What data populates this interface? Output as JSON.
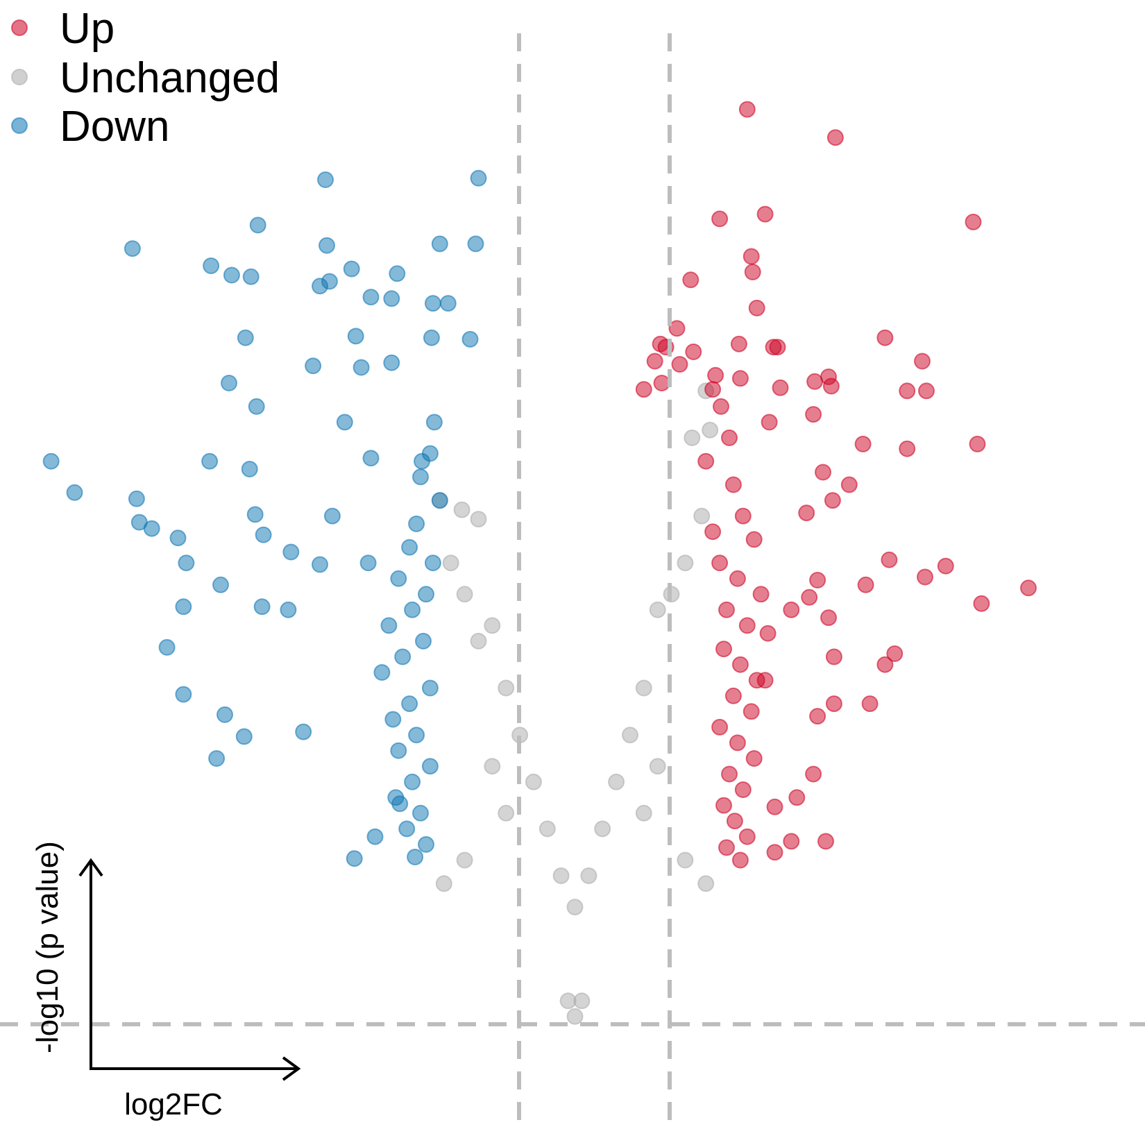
{
  "chart_data": {
    "type": "scatter",
    "title": "",
    "xlabel": "log2FC",
    "ylabel": "-log10 (p value)",
    "thresholds": {
      "log2fc": [
        -1,
        1
      ],
      "neg_log10_p": 1.3
    },
    "xlim": [
      -4,
      4
    ],
    "ylim": [
      0,
      6.5
    ],
    "grid": false,
    "legend_position": "top-left",
    "legend": [
      {
        "name": "Up",
        "color": "#CC0022"
      },
      {
        "name": "Unchanged",
        "color": "#AAAAAA"
      },
      {
        "name": "Down",
        "color": "#0B74B2"
      }
    ],
    "series": [
      {
        "name": "Up",
        "color": "#CC0022",
        "points": [
          [
            1.25,
            6.2
          ],
          [
            1.89,
            6.02
          ],
          [
            1.05,
            5.5
          ],
          [
            1.38,
            5.53
          ],
          [
            2.89,
            5.48
          ],
          [
            1.28,
            5.26
          ],
          [
            1.29,
            5.16
          ],
          [
            0.84,
            5.11
          ],
          [
            1.32,
            4.93
          ],
          [
            0.74,
            4.8
          ],
          [
            2.25,
            4.74
          ],
          [
            1.19,
            4.7
          ],
          [
            0.62,
            4.7
          ],
          [
            0.66,
            4.68
          ],
          [
            1.44,
            4.68
          ],
          [
            1.47,
            4.68
          ],
          [
            0.86,
            4.65
          ],
          [
            0.58,
            4.59
          ],
          [
            0.76,
            4.57
          ],
          [
            2.52,
            4.59
          ],
          [
            1.84,
            4.49
          ],
          [
            1.2,
            4.48
          ],
          [
            0.63,
            4.45
          ],
          [
            1.49,
            4.42
          ],
          [
            1.74,
            4.46
          ],
          [
            1.86,
            4.43
          ],
          [
            0.5,
            4.41
          ],
          [
            1.0,
            4.41
          ],
          [
            2.41,
            4.4
          ],
          [
            2.55,
            4.4
          ],
          [
            1.73,
            4.25
          ],
          [
            1.41,
            4.2
          ],
          [
            2.09,
            4.06
          ],
          [
            2.92,
            4.06
          ],
          [
            2.41,
            4.03
          ],
          [
            1.8,
            3.88
          ],
          [
            1.99,
            3.8
          ],
          [
            1.87,
            3.7
          ],
          [
            1.68,
            3.62
          ],
          [
            2.28,
            3.32
          ],
          [
            2.69,
            3.28
          ],
          [
            3.29,
            3.14
          ],
          [
            2.54,
            3.21
          ],
          [
            1.76,
            3.19
          ],
          [
            2.11,
            3.16
          ],
          [
            2.95,
            3.04
          ],
          [
            1.7,
            3.08
          ],
          [
            1.57,
            3.0
          ],
          [
            1.84,
            2.95
          ],
          [
            1.88,
            2.7
          ],
          [
            2.32,
            2.72
          ],
          [
            2.25,
            2.65
          ],
          [
            1.38,
            2.55
          ],
          [
            1.76,
            2.32
          ],
          [
            2.14,
            2.4
          ],
          [
            1.88,
            2.4
          ],
          [
            1.73,
            1.95
          ],
          [
            1.61,
            1.8
          ],
          [
            1.45,
            1.74
          ],
          [
            1.57,
            1.52
          ],
          [
            1.82,
            1.52
          ],
          [
            1.45,
            1.45
          ],
          [
            1.02,
            4.5
          ],
          [
            1.06,
            4.3
          ],
          [
            1.12,
            4.1
          ],
          [
            0.95,
            3.95
          ],
          [
            1.15,
            3.8
          ],
          [
            1.22,
            3.6
          ],
          [
            1.0,
            3.5
          ],
          [
            1.3,
            3.45
          ],
          [
            1.05,
            3.3
          ],
          [
            1.18,
            3.2
          ],
          [
            1.35,
            3.1
          ],
          [
            1.1,
            3.0
          ],
          [
            1.25,
            2.9
          ],
          [
            1.4,
            2.85
          ],
          [
            1.08,
            2.75
          ],
          [
            1.2,
            2.65
          ],
          [
            1.32,
            2.55
          ],
          [
            1.15,
            2.45
          ],
          [
            1.28,
            2.35
          ],
          [
            1.05,
            2.25
          ],
          [
            1.18,
            2.15
          ],
          [
            1.3,
            2.05
          ],
          [
            1.12,
            1.95
          ],
          [
            1.22,
            1.85
          ],
          [
            1.08,
            1.75
          ],
          [
            1.16,
            1.65
          ],
          [
            1.25,
            1.55
          ],
          [
            1.1,
            1.48
          ],
          [
            1.2,
            1.4
          ]
        ]
      },
      {
        "name": "Down",
        "color": "#0B74B2",
        "points": [
          [
            -1.81,
            5.75
          ],
          [
            -0.7,
            5.76
          ],
          [
            -2.3,
            5.46
          ],
          [
            -3.21,
            5.31
          ],
          [
            -1.8,
            5.33
          ],
          [
            -0.98,
            5.34
          ],
          [
            -0.72,
            5.34
          ],
          [
            -2.64,
            5.2
          ],
          [
            -2.49,
            5.14
          ],
          [
            -2.35,
            5.13
          ],
          [
            -1.62,
            5.18
          ],
          [
            -1.29,
            5.15
          ],
          [
            -1.78,
            5.1
          ],
          [
            -1.85,
            5.07
          ],
          [
            -1.48,
            5.0
          ],
          [
            -1.33,
            4.99
          ],
          [
            -1.03,
            4.96
          ],
          [
            -0.92,
            4.96
          ],
          [
            -2.39,
            4.74
          ],
          [
            -1.59,
            4.75
          ],
          [
            -1.04,
            4.74
          ],
          [
            -0.76,
            4.73
          ],
          [
            -2.51,
            4.45
          ],
          [
            -1.55,
            4.55
          ],
          [
            -1.33,
            4.58
          ],
          [
            -1.9,
            4.56
          ],
          [
            -2.31,
            4.3
          ],
          [
            -1.67,
            4.2
          ],
          [
            -3.8,
            3.95
          ],
          [
            -3.63,
            3.75
          ],
          [
            -3.18,
            3.71
          ],
          [
            -2.65,
            3.95
          ],
          [
            -2.36,
            3.9
          ],
          [
            -1.48,
            3.97
          ],
          [
            -1.11,
            3.95
          ],
          [
            -3.16,
            3.56
          ],
          [
            -2.82,
            3.3
          ],
          [
            -2.26,
            3.48
          ],
          [
            -2.32,
            3.61
          ],
          [
            -1.76,
            3.6
          ],
          [
            -3.07,
            3.52
          ],
          [
            -2.88,
            3.46
          ],
          [
            -2.57,
            3.16
          ],
          [
            -2.06,
            3.37
          ],
          [
            -1.85,
            3.29
          ],
          [
            -1.5,
            3.3
          ],
          [
            -2.84,
            3.02
          ],
          [
            -2.27,
            3.02
          ],
          [
            -2.08,
            3.0
          ],
          [
            -2.96,
            2.76
          ],
          [
            -2.84,
            2.46
          ],
          [
            -2.54,
            2.33
          ],
          [
            -2.4,
            2.19
          ],
          [
            -1.97,
            2.22
          ],
          [
            -2.6,
            2.05
          ],
          [
            -1.27,
            1.76
          ],
          [
            -1.45,
            1.55
          ],
          [
            -1.6,
            1.41
          ],
          [
            -1.02,
            4.2
          ],
          [
            -1.05,
            4.0
          ],
          [
            -1.12,
            3.85
          ],
          [
            -0.98,
            3.7
          ],
          [
            -1.15,
            3.55
          ],
          [
            -1.2,
            3.4
          ],
          [
            -1.03,
            3.3
          ],
          [
            -1.28,
            3.2
          ],
          [
            -1.08,
            3.1
          ],
          [
            -1.18,
            3.0
          ],
          [
            -1.35,
            2.9
          ],
          [
            -1.1,
            2.8
          ],
          [
            -1.25,
            2.7
          ],
          [
            -1.4,
            2.6
          ],
          [
            -1.05,
            2.5
          ],
          [
            -1.2,
            2.4
          ],
          [
            -1.32,
            2.3
          ],
          [
            -1.15,
            2.2
          ],
          [
            -1.28,
            2.1
          ],
          [
            -1.05,
            2.0
          ],
          [
            -1.18,
            1.9
          ],
          [
            -1.3,
            1.8
          ],
          [
            -1.12,
            1.7
          ],
          [
            -1.22,
            1.6
          ],
          [
            -1.08,
            1.5
          ],
          [
            -1.16,
            1.42
          ]
        ]
      },
      {
        "name": "Unchanged",
        "color": "#AAAAAA",
        "points": [
          [
            0.95,
            4.4
          ],
          [
            0.85,
            4.1
          ],
          [
            0.98,
            4.15
          ],
          [
            0.92,
            3.6
          ],
          [
            0.8,
            3.3
          ],
          [
            0.6,
            3.0
          ],
          [
            0.7,
            3.1
          ],
          [
            -0.98,
            3.7
          ],
          [
            -0.82,
            3.64
          ],
          [
            -0.7,
            3.58
          ],
          [
            -0.9,
            3.3
          ],
          [
            -0.8,
            3.1
          ],
          [
            -0.6,
            2.9
          ],
          [
            -0.7,
            2.8
          ],
          [
            -0.5,
            2.5
          ],
          [
            -0.4,
            2.2
          ],
          [
            -0.3,
            1.9
          ],
          [
            -0.2,
            1.6
          ],
          [
            -0.1,
            1.3
          ],
          [
            0.0,
            1.1
          ],
          [
            0.1,
            1.3
          ],
          [
            0.2,
            1.6
          ],
          [
            0.3,
            1.9
          ],
          [
            0.4,
            2.2
          ],
          [
            0.5,
            2.5
          ],
          [
            -0.6,
            2.0
          ],
          [
            -0.5,
            1.7
          ],
          [
            0.6,
            2.0
          ],
          [
            0.5,
            1.7
          ],
          [
            -0.95,
            1.25
          ],
          [
            0.95,
            1.25
          ],
          [
            -0.05,
            0.5
          ],
          [
            0.05,
            0.5
          ],
          [
            0.0,
            0.4
          ],
          [
            -0.8,
            1.4
          ],
          [
            0.8,
            1.4
          ]
        ]
      }
    ]
  }
}
